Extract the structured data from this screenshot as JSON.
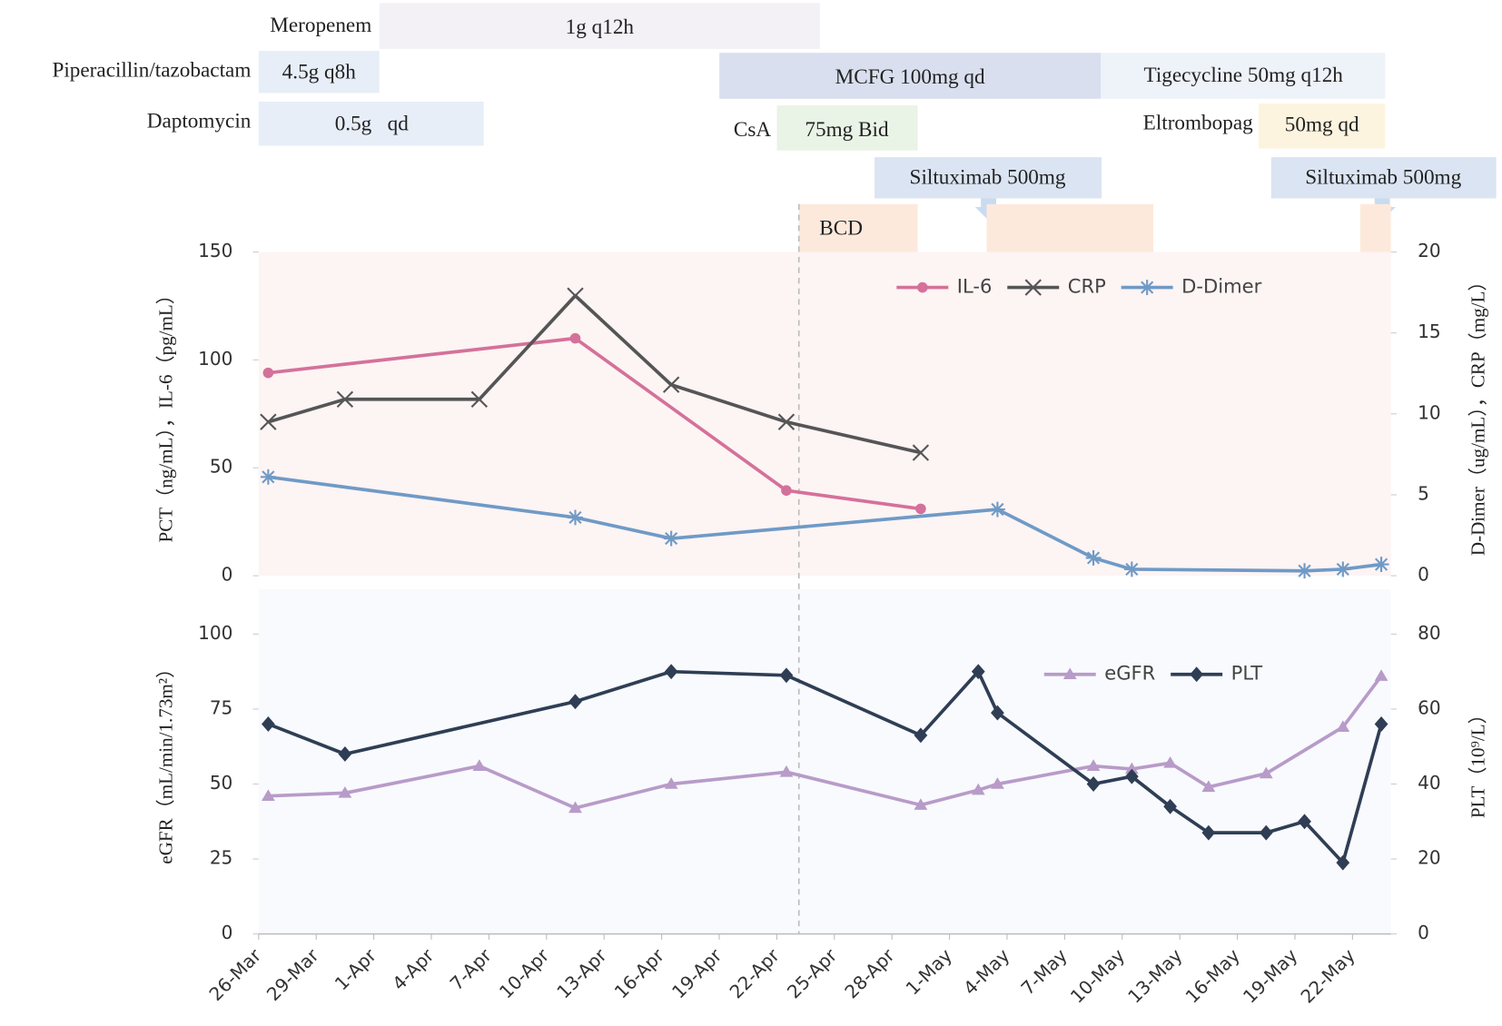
{
  "regimens": [
    {
      "drug": "Meropenem",
      "dose": "1g q12h"
    },
    {
      "drug": "Piperacillin/tazobactam",
      "dose": "4.5g q8h"
    },
    {
      "drug": "Daptomycin",
      "dose": "0.5g   qd"
    },
    {
      "dose": "MCFG 100mg qd"
    },
    {
      "dose": "Tigecycline 50mg q12h"
    },
    {
      "drug": "CsA",
      "dose": "75mg Bid"
    },
    {
      "drug": "Eltrombopag",
      "dose": "50mg qd"
    },
    {
      "dose": "Siltuximab 500mg"
    },
    {
      "dose": "Siltuximab 500mg"
    },
    {
      "dose": "BCD"
    }
  ],
  "chart_data": [
    {
      "type": "line",
      "ylabel": "PCT（ng/mL），IL-6（pg/mL）",
      "y2label": "D-Dimer（ug/mL），CRP（mg/L）",
      "xlim": [
        0,
        59
      ],
      "ylim": [
        0,
        150
      ],
      "yticks": [
        0,
        50,
        100,
        150
      ],
      "y2lim": [
        0,
        20
      ],
      "y2ticks": [
        0,
        5,
        10,
        15,
        20
      ],
      "legend": "upper right",
      "series": [
        {
          "name": "IL-6",
          "color": "#d4719a",
          "marker": "circle",
          "x": [
            0.5,
            16.5,
            27.5,
            34.5
          ],
          "values": [
            94,
            110,
            39.5,
            31
          ]
        },
        {
          "name": "CRP",
          "color": "#555555",
          "marker": "x",
          "axis": "y2",
          "x": [
            0.5,
            4.5,
            11.5,
            16.5,
            21.5,
            27.5,
            34.5
          ],
          "values": [
            9.5,
            10.9,
            10.9,
            17.3,
            11.8,
            9.5,
            7.6
          ]
        },
        {
          "name": "D-Dimer",
          "color": "#6f9ac6",
          "marker": "asterisk",
          "axis": "y2",
          "x": [
            0.5,
            16.5,
            21.5,
            38.5,
            43.5,
            45.5,
            54.5,
            56.5,
            58.5
          ],
          "values": [
            6.1,
            3.6,
            2.3,
            4.1,
            1.1,
            0.4,
            0.3,
            0.4,
            0.7
          ]
        }
      ]
    },
    {
      "type": "line",
      "ylabel": "eGFR（mL/min/1.73m²）",
      "y2label": "PLT（10⁹/L）",
      "xlim": [
        0,
        59
      ],
      "xticks": [
        {
          "value": 0,
          "label": "26-Mar"
        },
        {
          "value": 3,
          "label": "29-Mar"
        },
        {
          "value": 6,
          "label": "1-Apr"
        },
        {
          "value": 9,
          "label": "4-Apr"
        },
        {
          "value": 12,
          "label": "7-Apr"
        },
        {
          "value": 15,
          "label": "10-Apr"
        },
        {
          "value": 18,
          "label": "13-Apr"
        },
        {
          "value": 21,
          "label": "16-Apr"
        },
        {
          "value": 24,
          "label": "19-Apr"
        },
        {
          "value": 27,
          "label": "22-Apr"
        },
        {
          "value": 30,
          "label": "25-Apr"
        },
        {
          "value": 33,
          "label": "28-Apr"
        },
        {
          "value": 36,
          "label": "1-May"
        },
        {
          "value": 39,
          "label": "4-May"
        },
        {
          "value": 42,
          "label": "7-May"
        },
        {
          "value": 45,
          "label": "10-May"
        },
        {
          "value": 48,
          "label": "13-May"
        },
        {
          "value": 51,
          "label": "16-May"
        },
        {
          "value": 54,
          "label": "19-May"
        },
        {
          "value": 57,
          "label": "22-May"
        }
      ],
      "ylim": [
        0,
        115
      ],
      "yticks": [
        0,
        25,
        50,
        75,
        100
      ],
      "y2lim": [
        0,
        92
      ],
      "y2ticks": [
        0,
        20,
        40,
        60,
        80
      ],
      "legend": "upper right",
      "series": [
        {
          "name": "eGFR",
          "color": "#b89bc9",
          "marker": "triangle",
          "x": [
            0.5,
            4.5,
            11.5,
            16.5,
            21.5,
            27.5,
            34.5,
            37.5,
            38.5,
            43.5,
            45.5,
            47.5,
            49.5,
            52.5,
            56.5,
            58.5
          ],
          "values": [
            46,
            47,
            56,
            42,
            50,
            54,
            43,
            48,
            50,
            56,
            55,
            57,
            49,
            53.5,
            69,
            86
          ]
        },
        {
          "name": "PLT",
          "color": "#2f3e55",
          "marker": "diamond",
          "axis": "y2",
          "x": [
            0.5,
            4.5,
            16.5,
            21.5,
            27.5,
            34.5,
            37.5,
            38.5,
            43.5,
            45.5,
            47.5,
            49.5,
            52.5,
            54.5,
            56.5,
            58.5
          ],
          "values": [
            56,
            48,
            62,
            70,
            69,
            53,
            70,
            59,
            40,
            42,
            34,
            27,
            27,
            30,
            19,
            56
          ]
        }
      ]
    }
  ]
}
